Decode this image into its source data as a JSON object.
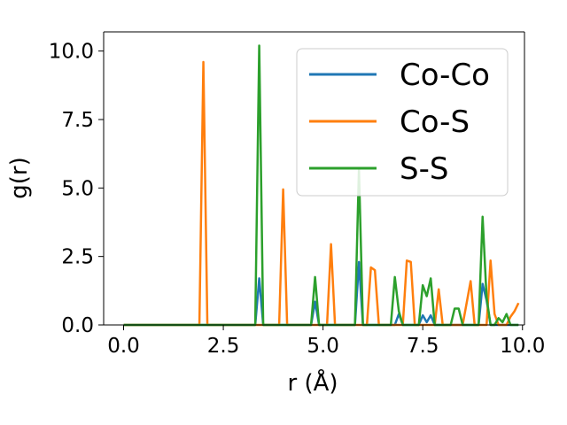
{
  "chart_data": {
    "type": "line",
    "title": "",
    "xlabel": "r (Å)",
    "ylabel": "g(r)",
    "xlim": [
      -0.5,
      10.05
    ],
    "ylim": [
      0,
      10.7
    ],
    "xticks": [
      0.0,
      2.5,
      5.0,
      7.5,
      10.0
    ],
    "xtick_labels": [
      "0.0",
      "2.5",
      "5.0",
      "7.5",
      "10.0"
    ],
    "yticks": [
      0.0,
      2.5,
      5.0,
      7.5,
      10.0
    ],
    "ytick_labels": [
      "0.0",
      "2.5",
      "5.0",
      "7.5",
      "10.0"
    ],
    "grid": false,
    "legend_position": "top-right",
    "x": [
      0.0,
      0.1,
      0.2,
      0.3,
      0.4,
      0.5,
      0.6,
      0.7,
      0.8,
      0.9,
      1.0,
      1.1,
      1.2,
      1.3,
      1.4,
      1.5,
      1.6,
      1.7,
      1.8,
      1.9,
      2.0,
      2.1,
      2.2,
      2.3,
      2.4,
      2.5,
      2.6,
      2.7,
      2.8,
      2.9,
      3.0,
      3.1,
      3.2,
      3.3,
      3.4,
      3.5,
      3.6,
      3.7,
      3.8,
      3.9,
      4.0,
      4.1,
      4.2,
      4.3,
      4.4,
      4.5,
      4.6,
      4.7,
      4.8,
      4.9,
      5.0,
      5.1,
      5.2,
      5.3,
      5.4,
      5.5,
      5.6,
      5.7,
      5.8,
      5.9,
      6.0,
      6.1,
      6.2,
      6.3,
      6.4,
      6.5,
      6.6,
      6.7,
      6.8,
      6.9,
      7.0,
      7.1,
      7.2,
      7.3,
      7.4,
      7.5,
      7.6,
      7.7,
      7.8,
      7.9,
      8.0,
      8.1,
      8.2,
      8.3,
      8.4,
      8.5,
      8.6,
      8.7,
      8.8,
      8.9,
      9.0,
      9.1,
      9.2,
      9.3,
      9.4,
      9.5,
      9.6,
      9.7,
      9.8,
      9.9
    ],
    "series": [
      {
        "name": "Co-Co",
        "color": "#1f77b4",
        "values": [
          0,
          0,
          0,
          0,
          0,
          0,
          0,
          0,
          0,
          0,
          0,
          0,
          0,
          0,
          0,
          0,
          0,
          0,
          0,
          0,
          0,
          0,
          0,
          0,
          0,
          0,
          0,
          0,
          0,
          0,
          0,
          0,
          0,
          0,
          1.7,
          0,
          0,
          0,
          0,
          0,
          0,
          0,
          0,
          0,
          0,
          0,
          0,
          0,
          0.85,
          0,
          0,
          0,
          0,
          0,
          0,
          0,
          0,
          0,
          0,
          2.3,
          0,
          0,
          0,
          0,
          0,
          0,
          0,
          0,
          0,
          0.4,
          0,
          0,
          0,
          0,
          0,
          0.35,
          0.1,
          0.35,
          0,
          0,
          0,
          0,
          0,
          0,
          0,
          0,
          0,
          0,
          0,
          0,
          1.5,
          0.9,
          0,
          0,
          0,
          0,
          0,
          0,
          0,
          0
        ]
      },
      {
        "name": "Co-S",
        "color": "#ff7f0e",
        "values": [
          0,
          0,
          0,
          0,
          0,
          0,
          0,
          0,
          0,
          0,
          0,
          0,
          0,
          0,
          0,
          0,
          0,
          0,
          0,
          0,
          9.6,
          0,
          0,
          0,
          0,
          0,
          0,
          0,
          0,
          0,
          0,
          0,
          0,
          0,
          0,
          0,
          0,
          0,
          0,
          0,
          4.95,
          0,
          0,
          0,
          0,
          0,
          0,
          0,
          0,
          0,
          0,
          0,
          2.95,
          0,
          0,
          0,
          0,
          0,
          0,
          0,
          0,
          0,
          2.1,
          2.0,
          0,
          0,
          0,
          0,
          0,
          0,
          0,
          2.35,
          2.3,
          0,
          0,
          0,
          0,
          0,
          0,
          1.3,
          0,
          0,
          0,
          0,
          0,
          0,
          0.8,
          1.6,
          0,
          0,
          0,
          0,
          2.35,
          0.4,
          0,
          0,
          0,
          0.3,
          0.5,
          0.8
        ]
      },
      {
        "name": "S-S",
        "color": "#2ca02c",
        "values": [
          0,
          0,
          0,
          0,
          0,
          0,
          0,
          0,
          0,
          0,
          0,
          0,
          0,
          0,
          0,
          0,
          0,
          0,
          0,
          0,
          0,
          0,
          0,
          0,
          0,
          0,
          0,
          0,
          0,
          0,
          0,
          0,
          0,
          0,
          10.2,
          0,
          0,
          0,
          0,
          0,
          0,
          0,
          0,
          0,
          0,
          0,
          0,
          0,
          1.75,
          0,
          0,
          0,
          0,
          0,
          0,
          0,
          0,
          0,
          0,
          5.7,
          0,
          0,
          0,
          0,
          0,
          0,
          0,
          0,
          1.75,
          0.5,
          0,
          0,
          0,
          0,
          0,
          1.45,
          1.05,
          1.7,
          0,
          0,
          0,
          0,
          0,
          0.6,
          0.6,
          0,
          0,
          0,
          0,
          0,
          3.95,
          1.0,
          0,
          0,
          0.25,
          0.1,
          0.4,
          0,
          0,
          0
        ]
      }
    ]
  }
}
